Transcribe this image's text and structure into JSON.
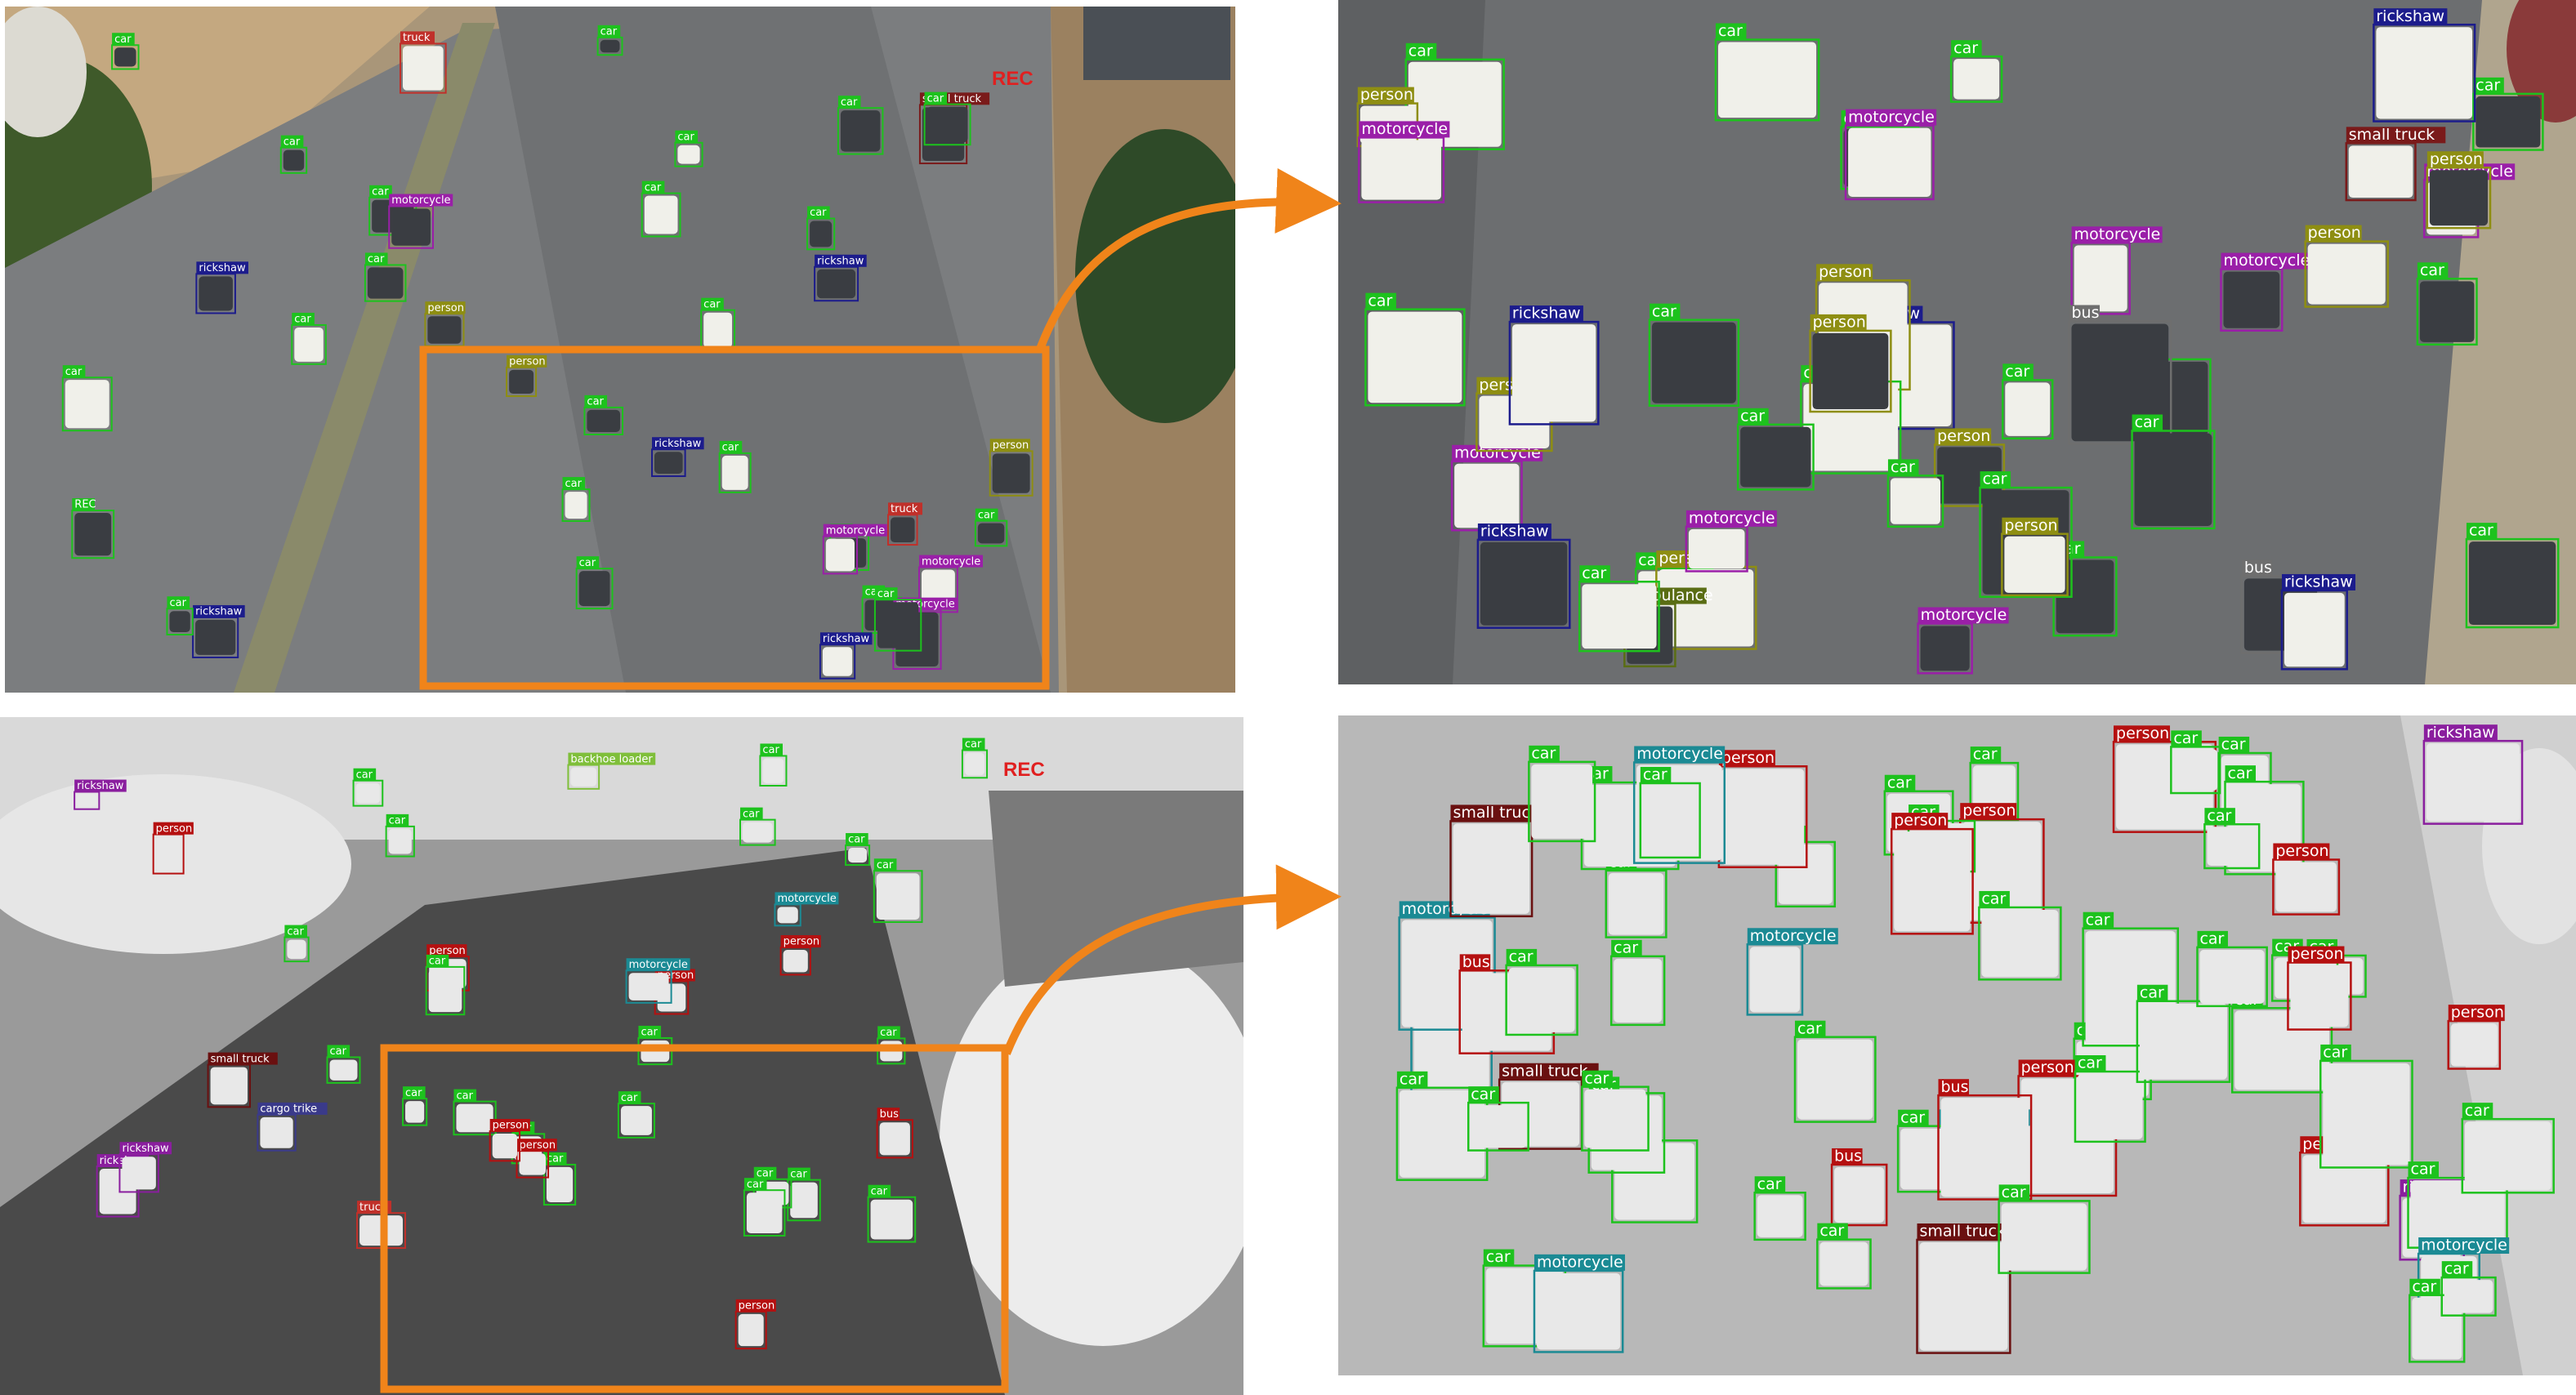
{
  "panels": {
    "rgb_overview": {
      "rec_text": "REC"
    },
    "rgb_zoom": {},
    "thermal_overview": {
      "rec_text": "REC"
    },
    "thermal_zoom": {}
  },
  "class_colors": {
    "car": "#1dc21d",
    "truck": "#c0302a",
    "small truck": "#7a1a1a",
    "person": "#8e8e12",
    "motorcycle": "#9a1fa8",
    "rickshaw": "#1c1c8c",
    "bus": "#6e6e6e",
    "ambulance": "#5a6d14",
    "backhoe loader": "#7fbf3a",
    "cargo trike": "#3a3a8a",
    "thermal_person": "#b51010",
    "thermal_motorcycle": "#1b8a94",
    "thermal_rickshaw": "#8a1e9e",
    "thermal_bus": "#b51010",
    "thermal_small_truck": "#6a1010"
  },
  "highlight_color": "#f0841a",
  "labels": {
    "rgb_zoom": [
      "car",
      "car",
      "rickshaw",
      "person",
      "motorcycle",
      "car",
      "person",
      "motorcycle",
      "person",
      "motorcycle",
      "car",
      "car",
      "rickshaw",
      "car",
      "bus",
      "person",
      "motorcycle",
      "motorcycle",
      "small truck",
      "car",
      "car",
      "car",
      "car",
      "car",
      "rickshaw",
      "ambulance",
      "bus",
      "person",
      "motorcycle",
      "person",
      "motorcycle",
      "rickshaw",
      "person",
      "car",
      "car",
      "car",
      "car",
      "rickshaw",
      "person",
      "car",
      "car",
      "car",
      "person",
      "motorcycle",
      "car"
    ],
    "thermal_zoom": [
      "car",
      "car",
      "bus",
      "motorcycle",
      "motorcycle",
      "small truck",
      "car",
      "small truck",
      "person",
      "motorcycle",
      "car",
      "car",
      "car",
      "bus",
      "person",
      "car",
      "small truck",
      "person",
      "motorcycle",
      "car",
      "car",
      "car",
      "car",
      "person",
      "person",
      "car",
      "car",
      "car",
      "car",
      "car",
      "car",
      "bus",
      "car",
      "car",
      "car",
      "rickshaw",
      "car",
      "car",
      "car",
      "motorcycle",
      "car",
      "car",
      "person",
      "motorcycle",
      "car",
      "person",
      "car",
      "car",
      "car",
      "car",
      "car",
      "car",
      "rickshaw",
      "car",
      "car",
      "person",
      "motorcycle",
      "car",
      "car",
      "car",
      "car",
      "car",
      "person"
    ],
    "rgb_overview": [
      "truck",
      "truck",
      "car",
      "car",
      "person",
      "motorcycle",
      "car",
      "rickshaw",
      "car",
      "car",
      "REC",
      "rickshaw",
      "car",
      "person",
      "motorcycle",
      "car",
      "car",
      "rickshaw",
      "car",
      "small truck",
      "car",
      "car",
      "car",
      "rickshaw",
      "car",
      "car",
      "motorcycle",
      "car",
      "car",
      "rickshaw",
      "car",
      "car",
      "car",
      "car",
      "person",
      "motorcycle",
      "car",
      "car"
    ],
    "thermal_overview": [
      "car",
      "rickshaw",
      "motorcycle",
      "car",
      "person",
      "car",
      "backhoe loader",
      "car",
      "truck",
      "car",
      "person",
      "car",
      "cargo trike",
      "car",
      "car",
      "person",
      "car",
      "small truck",
      "car",
      "car",
      "person",
      "car",
      "motorcycle",
      "car",
      "car",
      "rickshaw",
      "person",
      "bus",
      "car",
      "person",
      "rickshaw",
      "car",
      "car",
      "car",
      "car",
      "car",
      "person",
      "car"
    ]
  }
}
